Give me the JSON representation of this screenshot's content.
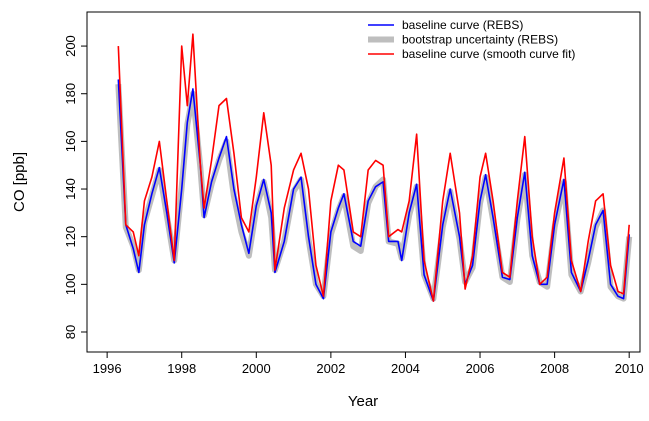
{
  "chart_data": {
    "type": "line",
    "xlabel": "Year",
    "ylabel": "CO [ppb]",
    "x": [
      1996.3,
      1996.5,
      1996.7,
      1996.85,
      1997.0,
      1997.2,
      1997.4,
      1997.6,
      1997.8,
      1998.0,
      1998.15,
      1998.3,
      1998.5,
      1998.6,
      1998.8,
      1999.0,
      1999.2,
      1999.4,
      1999.6,
      1999.8,
      2000.0,
      2000.2,
      2000.4,
      2000.5,
      2000.75,
      2001.0,
      2001.2,
      2001.4,
      2001.6,
      2001.8,
      2002.0,
      2002.2,
      2002.35,
      2002.6,
      2002.8,
      2003.0,
      2003.2,
      2003.4,
      2003.55,
      2003.8,
      2003.9,
      2004.1,
      2004.3,
      2004.5,
      2004.75,
      2005.0,
      2005.2,
      2005.45,
      2005.6,
      2005.8,
      2006.0,
      2006.15,
      2006.35,
      2006.6,
      2006.8,
      2007.0,
      2007.2,
      2007.4,
      2007.6,
      2007.8,
      2008.0,
      2008.25,
      2008.45,
      2008.7,
      2008.9,
      2009.1,
      2009.3,
      2009.5,
      2009.7,
      2009.85,
      2010.0
    ],
    "series": [
      {
        "name": "bootstrap uncertainty (REBS)",
        "color": "#bebebe",
        "width": 6,
        "values": [
          184,
          124,
          116,
          106,
          126,
          137,
          148,
          129,
          110,
          141,
          167,
          180,
          149,
          129,
          142,
          152,
          160,
          137,
          122,
          112,
          132,
          143,
          128,
          106,
          118,
          139,
          144,
          119,
          100,
          95,
          121,
          131,
          137,
          116,
          114,
          134,
          141,
          144,
          118,
          117,
          111,
          129,
          141,
          104,
          94,
          124,
          139,
          119,
          101,
          107,
          134,
          145,
          127,
          103,
          101,
          127,
          146,
          112,
          101,
          99,
          124,
          143,
          104,
          97,
          109,
          124,
          131,
          99,
          95,
          94,
          120
        ]
      },
      {
        "name": "baseline curve (REBS)",
        "color": "#0000ff",
        "width": 1.6,
        "values": [
          186,
          125,
          115,
          105,
          125,
          138,
          149,
          130,
          109,
          140,
          168,
          182,
          150,
          128,
          143,
          153,
          162,
          140,
          125,
          113,
          133,
          144,
          130,
          105,
          118,
          140,
          145,
          120,
          100,
          94,
          122,
          132,
          138,
          118,
          116,
          135,
          141,
          143,
          118,
          118,
          110,
          130,
          142,
          104,
          93,
          125,
          140,
          120,
          100,
          108,
          135,
          146,
          128,
          103,
          102,
          128,
          147,
          112,
          100,
          100,
          125,
          144,
          105,
          97,
          110,
          125,
          131,
          100,
          95,
          94,
          121
        ]
      },
      {
        "name": "baseline curve (smooth curve fit)",
        "color": "#ff0000",
        "width": 1.6,
        "values": [
          200,
          125,
          122,
          112,
          135,
          145,
          160,
          135,
          110,
          200,
          175,
          205,
          150,
          132,
          152,
          175,
          178,
          155,
          128,
          122,
          145,
          172,
          150,
          106,
          132,
          148,
          155,
          140,
          108,
          95,
          135,
          150,
          148,
          122,
          120,
          148,
          152,
          150,
          120,
          123,
          122,
          135,
          163,
          110,
          93,
          135,
          155,
          130,
          98,
          112,
          145,
          155,
          135,
          105,
          103,
          135,
          162,
          120,
          100,
          103,
          130,
          153,
          110,
          97,
          118,
          135,
          138,
          108,
          97,
          96,
          125
        ]
      }
    ],
    "xlim": [
      1995.46,
      2010.29
    ],
    "ylim": [
      71.6,
      214.3
    ],
    "xticks": [
      1996,
      1998,
      2000,
      2002,
      2004,
      2006,
      2008,
      2010
    ],
    "yticks": [
      80,
      100,
      120,
      140,
      160,
      180,
      200
    ],
    "legend": "top-right"
  }
}
